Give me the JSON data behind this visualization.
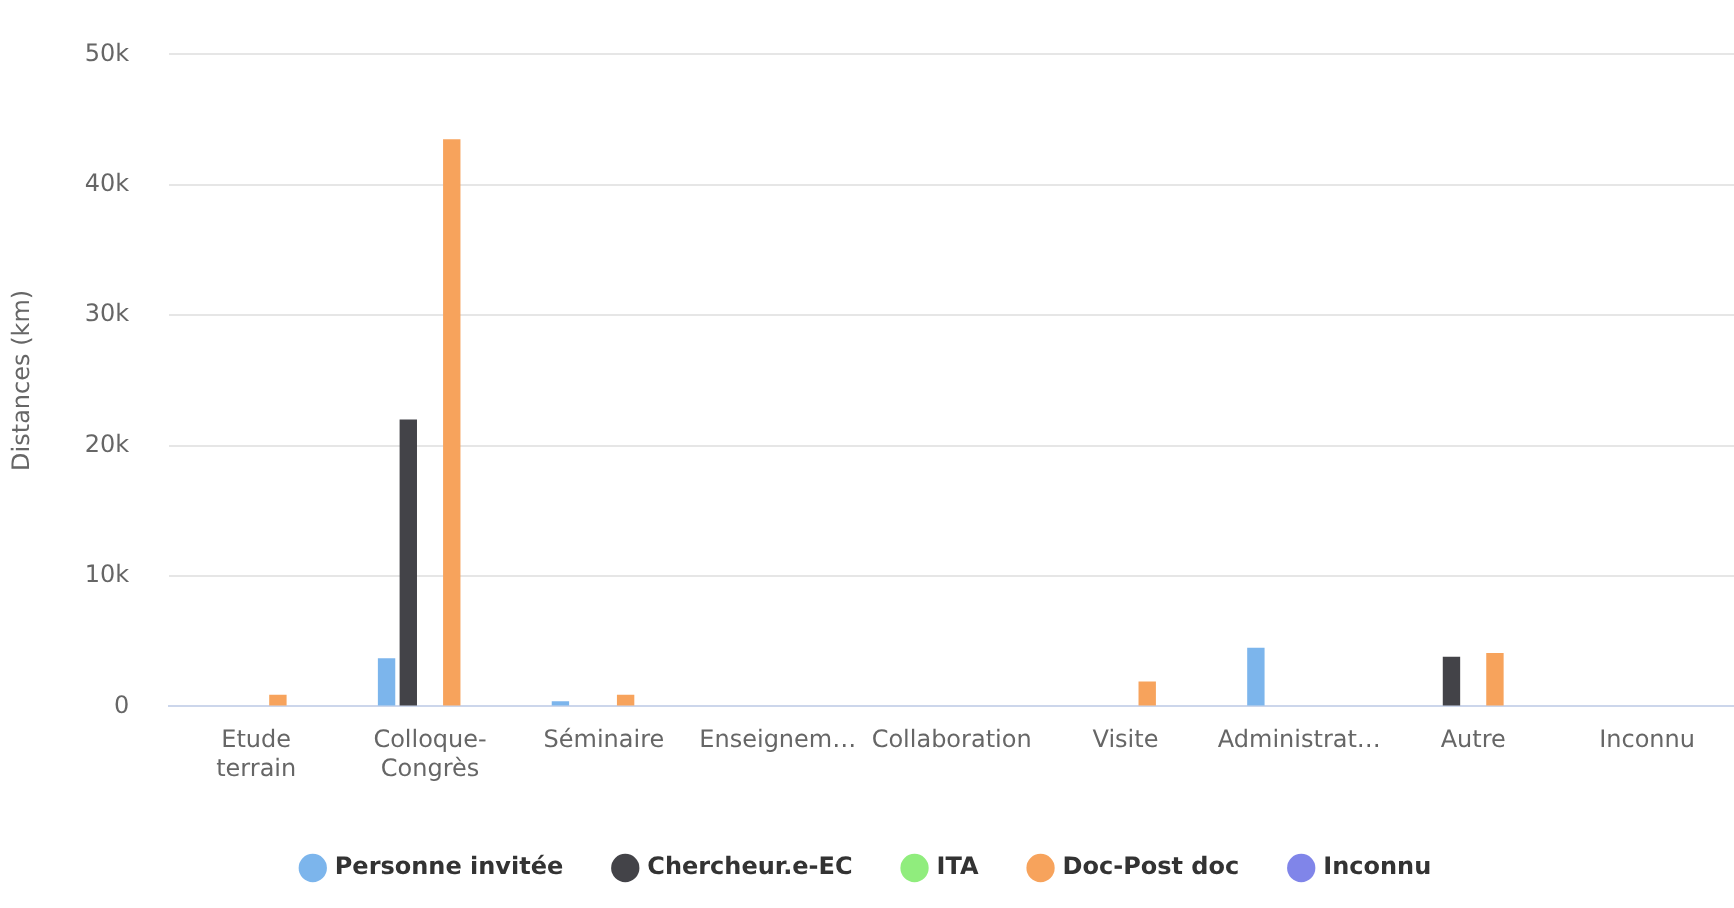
{
  "chart_data": {
    "type": "bar",
    "ylabel": "Distances (km)",
    "categories": [
      "Etude terrain",
      "Colloque-Congrès",
      "Séminaire",
      "Enseignem…",
      "Collaboration",
      "Visite",
      "Administrat…",
      "Autre",
      "Inconnu"
    ],
    "series": [
      {
        "name": "Personne invitée",
        "color": "#7cb5ec",
        "values": [
          null,
          3700,
          400,
          null,
          null,
          null,
          4500,
          null,
          null
        ]
      },
      {
        "name": "Chercheur.e-EC",
        "color": "#434348",
        "values": [
          null,
          22000,
          null,
          null,
          null,
          null,
          null,
          3800,
          null
        ]
      },
      {
        "name": "ITA",
        "color": "#90ed7d",
        "values": [
          null,
          null,
          null,
          null,
          null,
          null,
          null,
          null,
          null
        ]
      },
      {
        "name": "Doc-Post doc",
        "color": "#f7a35c",
        "values": [
          900,
          43500,
          900,
          null,
          null,
          1900,
          null,
          4100,
          null
        ]
      },
      {
        "name": "Inconnu",
        "color": "#8085e9",
        "values": [
          null,
          null,
          null,
          null,
          null,
          null,
          null,
          null,
          null
        ]
      }
    ],
    "ylim": [
      0,
      50000
    ],
    "yticks": [
      {
        "value": 0,
        "label": "0"
      },
      {
        "value": 10000,
        "label": "10k"
      },
      {
        "value": 20000,
        "label": "20k"
      },
      {
        "value": 30000,
        "label": "30k"
      },
      {
        "value": 40000,
        "label": "40k"
      },
      {
        "value": 50000,
        "label": "50k"
      }
    ],
    "grid": "y",
    "legend": "bottom"
  }
}
